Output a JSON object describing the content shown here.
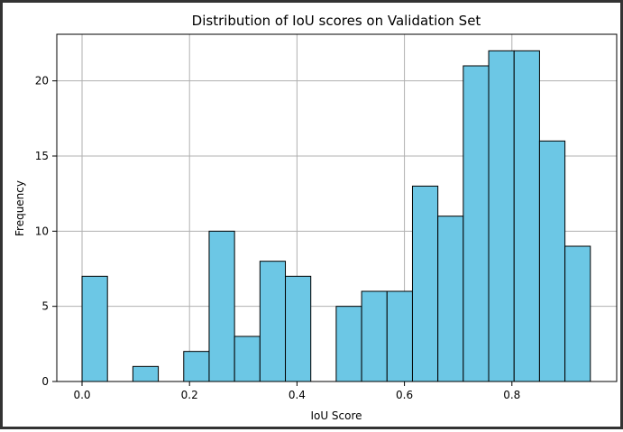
{
  "chart_data": {
    "type": "bar",
    "title": "Distribution of IoU scores on Validation Set",
    "xlabel": "IoU Score",
    "ylabel": "Frequency",
    "xlim": [
      -0.047,
      0.995
    ],
    "ylim": [
      0,
      23.1
    ],
    "grid": true,
    "bar_color": "#6CC7E5",
    "edge_color": "#000000",
    "bin_width": 0.0473,
    "bin_starts": [
      0.0,
      0.0473,
      0.0946,
      0.1419,
      0.1892,
      0.2365,
      0.2838,
      0.3311,
      0.3784,
      0.4257,
      0.473,
      0.5203,
      0.5676,
      0.6149,
      0.6622,
      0.7095,
      0.7568,
      0.8041,
      0.8514,
      0.8987
    ],
    "values": [
      7,
      0,
      1,
      0,
      2,
      10,
      3,
      8,
      7,
      0,
      5,
      6,
      6,
      13,
      11,
      21,
      22,
      22,
      16,
      9
    ],
    "x_ticks": [
      0.0,
      0.2,
      0.4,
      0.6,
      0.8
    ],
    "x_tick_labels": [
      "0.0",
      "0.2",
      "0.4",
      "0.6",
      "0.8"
    ],
    "y_ticks": [
      0,
      5,
      10,
      15,
      20
    ],
    "y_tick_labels": [
      "0",
      "5",
      "10",
      "15",
      "20"
    ]
  }
}
